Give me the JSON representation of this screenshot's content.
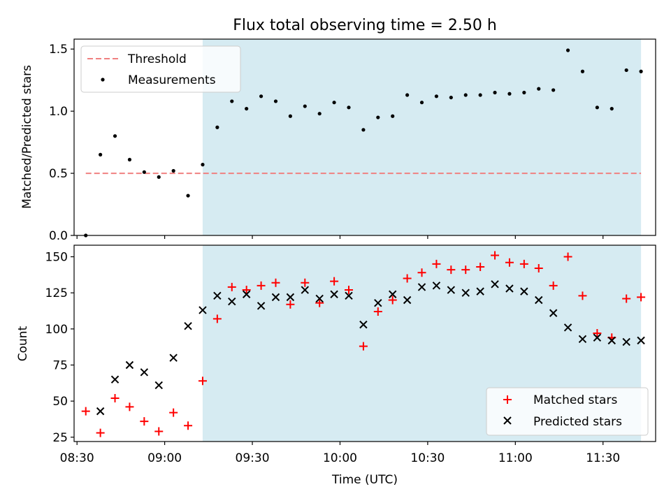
{
  "title": "Flux total observing time = 2.50 h",
  "colors": {
    "threshold": "#f08080",
    "measurement": "#000000",
    "matched": "#ff0000",
    "predicted": "#000000",
    "span": "#add8e6"
  },
  "chart_data": [
    {
      "type": "scatter",
      "ylabel": "Matched/Predicted stars",
      "ylim": [
        0,
        1.58
      ],
      "yticks": [
        "0.0",
        "0.5",
        "1.0",
        "1.5"
      ],
      "ytick_values": [
        0,
        0.5,
        1.0,
        1.5
      ],
      "legend_position": "top-left",
      "highlight_span": [
        "09:13",
        "11:43"
      ],
      "threshold": {
        "name": "Threshold",
        "value": 0.5,
        "x_start": "08:33",
        "x_end": "11:43"
      },
      "series": [
        {
          "name": "Measurements",
          "x": [
            "08:33",
            "08:38",
            "08:43",
            "08:48",
            "08:53",
            "08:58",
            "09:03",
            "09:08",
            "09:13",
            "09:18",
            "09:23",
            "09:28",
            "09:33",
            "09:38",
            "09:43",
            "09:48",
            "09:53",
            "09:58",
            "10:03",
            "10:08",
            "10:13",
            "10:18",
            "10:23",
            "10:28",
            "10:33",
            "10:38",
            "10:43",
            "10:48",
            "10:53",
            "10:58",
            "11:03",
            "11:08",
            "11:13",
            "11:18",
            "11:23",
            "11:28",
            "11:33",
            "11:38",
            "11:43"
          ],
          "y": [
            0.0,
            0.65,
            0.8,
            0.61,
            0.51,
            0.47,
            0.52,
            0.32,
            0.57,
            0.87,
            1.08,
            1.02,
            1.12,
            1.08,
            0.96,
            1.04,
            0.98,
            1.07,
            1.03,
            0.85,
            0.95,
            0.96,
            1.13,
            1.07,
            1.12,
            1.11,
            1.13,
            1.13,
            1.15,
            1.14,
            1.15,
            1.18,
            1.17,
            1.49,
            1.32,
            1.03,
            1.02,
            1.33,
            1.32
          ]
        }
      ]
    },
    {
      "type": "scatter",
      "xlabel": "Time (UTC)",
      "ylabel": "Count",
      "ylim": [
        22,
        158
      ],
      "yticks": [
        "25",
        "50",
        "75",
        "100",
        "125",
        "150"
      ],
      "ytick_values": [
        25,
        50,
        75,
        100,
        125,
        150
      ],
      "xticks": [
        "08:30",
        "09:00",
        "09:30",
        "10:00",
        "10:30",
        "11:00",
        "11:30"
      ],
      "xlim": [
        "08:29",
        "11:48"
      ],
      "legend_position": "bottom-right",
      "highlight_span": [
        "09:13",
        "11:43"
      ],
      "series": [
        {
          "name": "Matched stars",
          "marker": "plus",
          "x": [
            "08:33",
            "08:38",
            "08:43",
            "08:48",
            "08:53",
            "08:58",
            "09:03",
            "09:08",
            "09:13",
            "09:18",
            "09:23",
            "09:28",
            "09:33",
            "09:38",
            "09:43",
            "09:48",
            "09:53",
            "09:58",
            "10:03",
            "10:08",
            "10:13",
            "10:18",
            "10:23",
            "10:28",
            "10:33",
            "10:38",
            "10:43",
            "10:48",
            "10:53",
            "10:58",
            "11:03",
            "11:08",
            "11:13",
            "11:18",
            "11:23",
            "11:28",
            "11:33",
            "11:38",
            "11:43"
          ],
          "y": [
            43,
            28,
            52,
            46,
            36,
            29,
            42,
            33,
            64,
            107,
            129,
            127,
            130,
            132,
            117,
            132,
            118,
            133,
            127,
            88,
            112,
            120,
            135,
            139,
            145,
            141,
            141,
            143,
            151,
            146,
            145,
            142,
            130,
            150,
            123,
            97,
            94,
            121,
            122
          ]
        },
        {
          "name": "Predicted stars",
          "marker": "x",
          "x": [
            "08:38",
            "08:43",
            "08:48",
            "08:53",
            "08:58",
            "09:03",
            "09:08",
            "09:13",
            "09:18",
            "09:23",
            "09:28",
            "09:33",
            "09:38",
            "09:43",
            "09:48",
            "09:53",
            "09:58",
            "10:03",
            "10:08",
            "10:13",
            "10:18",
            "10:23",
            "10:28",
            "10:33",
            "10:38",
            "10:43",
            "10:48",
            "10:53",
            "10:58",
            "11:03",
            "11:08",
            "11:13",
            "11:18",
            "11:23",
            "11:28",
            "11:33",
            "11:38",
            "11:43"
          ],
          "y": [
            43,
            65,
            75,
            70,
            61,
            80,
            102,
            113,
            123,
            119,
            124,
            116,
            122,
            122,
            127,
            121,
            124,
            123,
            103,
            118,
            124,
            120,
            129,
            130,
            127,
            125,
            126,
            131,
            128,
            126,
            120,
            111,
            101,
            93,
            94,
            92,
            91,
            92
          ]
        }
      ]
    }
  ]
}
